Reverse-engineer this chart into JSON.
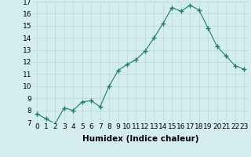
{
  "xlabel": "Humidex (Indice chaleur)",
  "x": [
    0,
    1,
    2,
    3,
    4,
    5,
    6,
    7,
    8,
    9,
    10,
    11,
    12,
    13,
    14,
    15,
    16,
    17,
    18,
    19,
    20,
    21,
    22,
    23
  ],
  "y": [
    7.7,
    7.3,
    6.9,
    8.2,
    8.0,
    8.7,
    8.8,
    8.3,
    10.0,
    11.3,
    11.8,
    12.2,
    12.9,
    14.0,
    15.2,
    16.5,
    16.2,
    16.7,
    16.3,
    14.8,
    13.3,
    12.5,
    11.7,
    11.4
  ],
  "ylim": [
    7,
    17
  ],
  "yticks": [
    7,
    8,
    9,
    10,
    11,
    12,
    13,
    14,
    15,
    16,
    17
  ],
  "line_color": "#1a7a6e",
  "marker": "+",
  "marker_size": 4,
  "bg_color": "#d4eeee",
  "grid_color": "#b8d8d4",
  "tick_label_fontsize": 6.5,
  "xlabel_fontsize": 7.5
}
